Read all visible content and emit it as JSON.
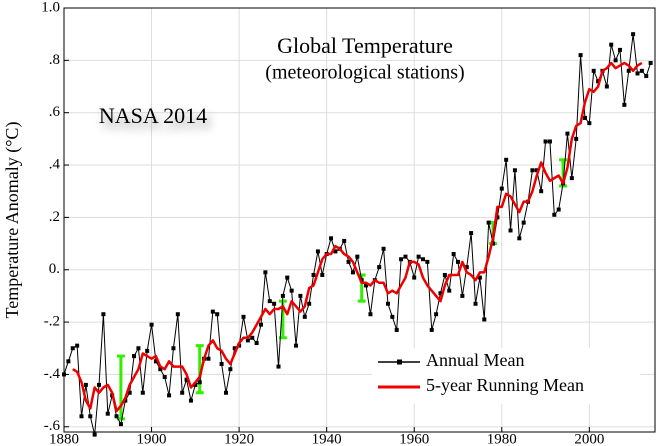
{
  "chart_data": {
    "type": "line",
    "title": "Global Temperature",
    "subtitle": "(meteorological stations)",
    "annotation": "NASA 2014",
    "y_label": "Temperature Anomaly (°C)",
    "xlim": [
      1880,
      2015
    ],
    "xticks": [
      1880,
      1900,
      1920,
      1940,
      1960,
      1980,
      2000
    ],
    "ylim": [
      -0.62,
      1.0
    ],
    "yticks": [
      {
        "value": 1.0,
        "label": "1.0"
      },
      {
        "value": 0.8,
        "label": ".8"
      },
      {
        "value": 0.6,
        "label": ".6"
      },
      {
        "value": 0.4,
        "label": ".4"
      },
      {
        "value": 0.2,
        "label": ".2"
      },
      {
        "value": 0,
        "label": "0."
      },
      {
        "value": -0.2,
        "label": "-.2"
      },
      {
        "value": -0.4,
        "label": "-.4"
      },
      {
        "value": -0.6,
        "label": "-.6"
      }
    ],
    "grid": true,
    "legend": "lower right",
    "x": [
      1880,
      1881,
      1882,
      1883,
      1884,
      1885,
      1886,
      1887,
      1888,
      1889,
      1890,
      1891,
      1892,
      1893,
      1894,
      1895,
      1896,
      1897,
      1898,
      1899,
      1900,
      1901,
      1902,
      1903,
      1904,
      1905,
      1906,
      1907,
      1908,
      1909,
      1910,
      1911,
      1912,
      1913,
      1914,
      1915,
      1916,
      1917,
      1918,
      1919,
      1920,
      1921,
      1922,
      1923,
      1924,
      1925,
      1926,
      1927,
      1928,
      1929,
      1930,
      1931,
      1932,
      1933,
      1934,
      1935,
      1936,
      1937,
      1938,
      1939,
      1940,
      1941,
      1942,
      1943,
      1944,
      1945,
      1946,
      1947,
      1948,
      1949,
      1950,
      1951,
      1952,
      1953,
      1954,
      1955,
      1956,
      1957,
      1958,
      1959,
      1960,
      1961,
      1962,
      1963,
      1964,
      1965,
      1966,
      1967,
      1968,
      1969,
      1970,
      1971,
      1972,
      1973,
      1974,
      1975,
      1976,
      1977,
      1978,
      1979,
      1980,
      1981,
      1982,
      1983,
      1984,
      1985,
      1986,
      1987,
      1988,
      1989,
      1990,
      1991,
      1992,
      1993,
      1994,
      1995,
      1996,
      1997,
      1998,
      1999,
      2000,
      2001,
      2002,
      2003,
      2004,
      2005,
      2006,
      2007,
      2008,
      2009,
      2010,
      2011,
      2012,
      2013,
      2014
    ],
    "series": [
      {
        "name": "Annual Mean",
        "color": "#000000",
        "marker": "square",
        "values": [
          -0.4,
          -0.35,
          -0.3,
          -0.29,
          -0.56,
          -0.44,
          -0.56,
          -0.63,
          -0.44,
          -0.17,
          -0.55,
          -0.48,
          -0.56,
          -0.59,
          -0.5,
          -0.47,
          -0.33,
          -0.3,
          -0.47,
          -0.31,
          -0.21,
          -0.35,
          -0.38,
          -0.41,
          -0.48,
          -0.3,
          -0.17,
          -0.47,
          -0.42,
          -0.5,
          -0.44,
          -0.43,
          -0.34,
          -0.34,
          -0.16,
          -0.17,
          -0.36,
          -0.47,
          -0.38,
          -0.3,
          -0.29,
          -0.18,
          -0.27,
          -0.26,
          -0.28,
          -0.21,
          -0.01,
          -0.12,
          -0.13,
          -0.37,
          -0.1,
          -0.03,
          -0.08,
          -0.29,
          -0.1,
          -0.18,
          -0.13,
          -0.02,
          0.07,
          -0.02,
          0.06,
          0.12,
          0.07,
          0.08,
          0.11,
          0.03,
          -0.01,
          0.05,
          -0.04,
          -0.06,
          -0.17,
          -0.04,
          0.01,
          0.08,
          -0.13,
          -0.18,
          -0.23,
          0.04,
          0.05,
          0.03,
          -0.03,
          0.05,
          0.04,
          0.03,
          -0.23,
          -0.17,
          -0.09,
          -0.02,
          -0.08,
          0.06,
          0.03,
          -0.1,
          0.01,
          0.14,
          -0.13,
          -0.03,
          -0.19,
          0.18,
          0.1,
          0.2,
          0.31,
          0.42,
          0.15,
          0.38,
          0.12,
          0.18,
          0.26,
          0.38,
          0.38,
          0.3,
          0.49,
          0.49,
          0.21,
          0.23,
          0.33,
          0.52,
          0.35,
          0.5,
          0.82,
          0.58,
          0.56,
          0.76,
          0.72,
          0.76,
          0.7,
          0.86,
          0.8,
          0.84,
          0.63,
          0.76,
          0.9,
          0.75,
          0.76,
          0.74,
          0.79
        ]
      },
      {
        "name": "5-year Running Mean",
        "color": "#ee0000",
        "values": [
          null,
          null,
          -0.38,
          -0.39,
          -0.43,
          -0.5,
          -0.53,
          -0.45,
          -0.47,
          -0.45,
          -0.44,
          -0.47,
          -0.54,
          -0.52,
          -0.49,
          -0.44,
          -0.41,
          -0.38,
          -0.32,
          -0.33,
          -0.34,
          -0.33,
          -0.37,
          -0.38,
          -0.35,
          -0.37,
          -0.37,
          -0.37,
          -0.4,
          -0.45,
          -0.43,
          -0.41,
          -0.34,
          -0.29,
          -0.27,
          -0.3,
          -0.31,
          -0.34,
          -0.36,
          -0.32,
          -0.28,
          -0.26,
          -0.26,
          -0.24,
          -0.21,
          -0.18,
          -0.15,
          -0.17,
          -0.15,
          -0.15,
          -0.14,
          -0.17,
          -0.12,
          -0.14,
          -0.16,
          -0.14,
          -0.07,
          -0.06,
          -0.01,
          0.04,
          0.06,
          0.06,
          0.09,
          0.08,
          0.06,
          0.05,
          0.03,
          -0.01,
          -0.05,
          -0.05,
          -0.06,
          -0.04,
          -0.05,
          -0.05,
          -0.09,
          -0.08,
          -0.09,
          -0.06,
          -0.03,
          0.03,
          0.03,
          0.02,
          -0.03,
          -0.06,
          -0.08,
          -0.1,
          -0.12,
          -0.06,
          -0.02,
          -0.02,
          -0.02,
          0.03,
          -0.01,
          -0.02,
          -0.04,
          -0.01,
          -0.01,
          0.05,
          0.12,
          0.24,
          0.24,
          0.29,
          0.28,
          0.25,
          0.22,
          0.26,
          0.26,
          0.3,
          0.36,
          0.41,
          0.37,
          0.34,
          0.35,
          0.36,
          0.33,
          0.39,
          0.5,
          0.55,
          0.56,
          0.64,
          0.69,
          0.68,
          0.7,
          0.76,
          0.77,
          0.79,
          0.77,
          0.78,
          0.79,
          0.78,
          0.76,
          0.78,
          0.79,
          null,
          null
        ]
      }
    ],
    "error_bars": {
      "color": "#33ee00",
      "x": [
        1893,
        1911,
        1930,
        1948,
        1978,
        1994
      ],
      "values": [
        -0.45,
        -0.38,
        -0.19,
        -0.07,
        0.14,
        0.37
      ],
      "errors": [
        0.12,
        0.09,
        0.07,
        0.05,
        0.04,
        0.05
      ]
    }
  }
}
